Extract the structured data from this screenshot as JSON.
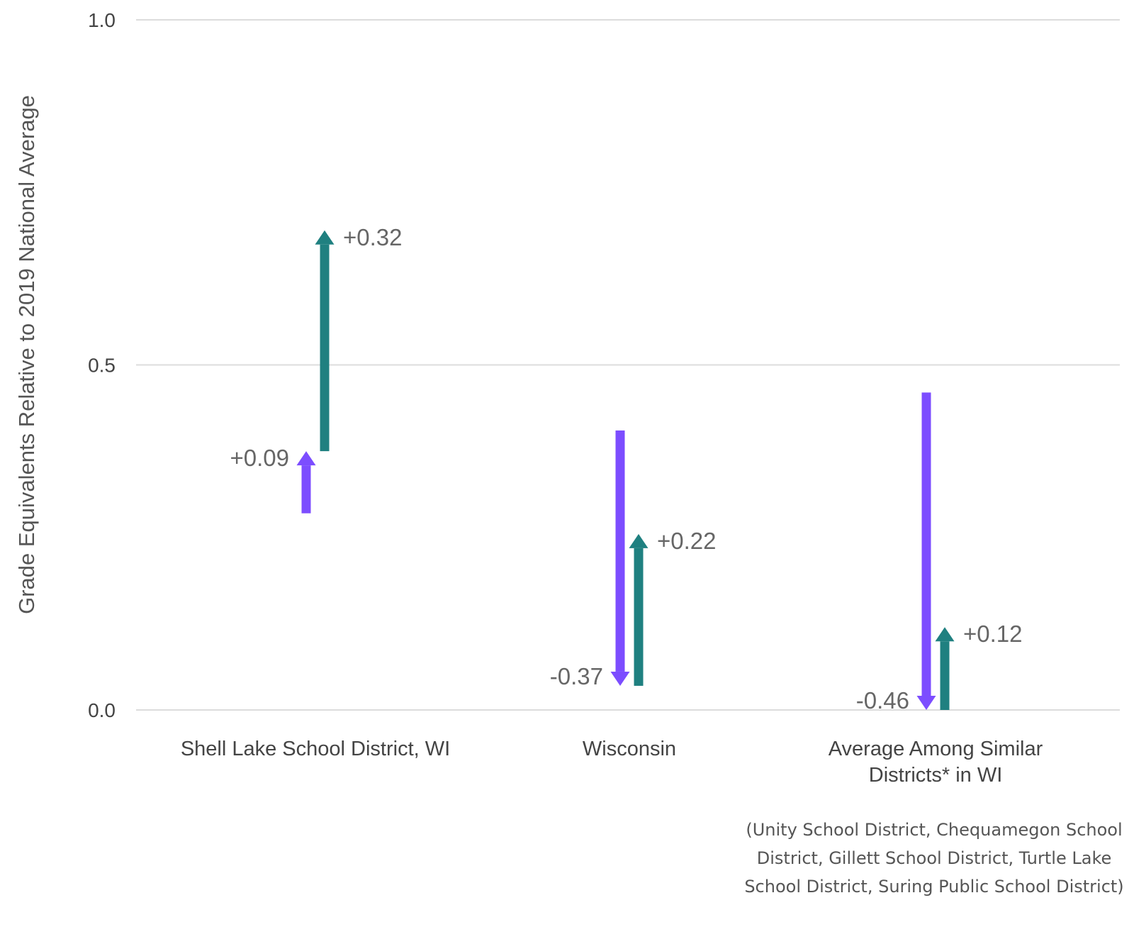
{
  "chart_data": {
    "type": "arrow",
    "ylabel": "Grade Equivalents Relative to 2019 National Average",
    "ylim": [
      0.0,
      1.0
    ],
    "yticks": [
      "0.0",
      "0.5",
      "1.0"
    ],
    "grid": true,
    "colors": {
      "decline": "#7C4DFF",
      "recovery": "#1F8080"
    },
    "categories": [
      {
        "lines": [
          "Shell Lake School District, WI"
        ]
      },
      {
        "lines": [
          "Wisconsin"
        ]
      },
      {
        "lines": [
          "Average Among Similar",
          "Districts* in WI"
        ]
      }
    ],
    "series": [
      {
        "key": "decline",
        "points": [
          {
            "start": 0.285,
            "end": 0.375,
            "label": "+0.09"
          },
          {
            "start": 0.405,
            "end": 0.035,
            "label": "-0.37"
          },
          {
            "start": 0.46,
            "end": 0.0,
            "label": "-0.46"
          }
        ]
      },
      {
        "key": "recovery",
        "points": [
          {
            "start": 0.375,
            "end": 0.695,
            "label": "+0.32"
          },
          {
            "start": 0.035,
            "end": 0.255,
            "label": "+0.22"
          },
          {
            "start": 0.0,
            "end": 0.12,
            "label": "+0.12"
          }
        ]
      }
    ]
  },
  "footnote": "(Unity School District, Chequamegon School District, Gillett School District, Turtle Lake School District, Suring Public School District)"
}
